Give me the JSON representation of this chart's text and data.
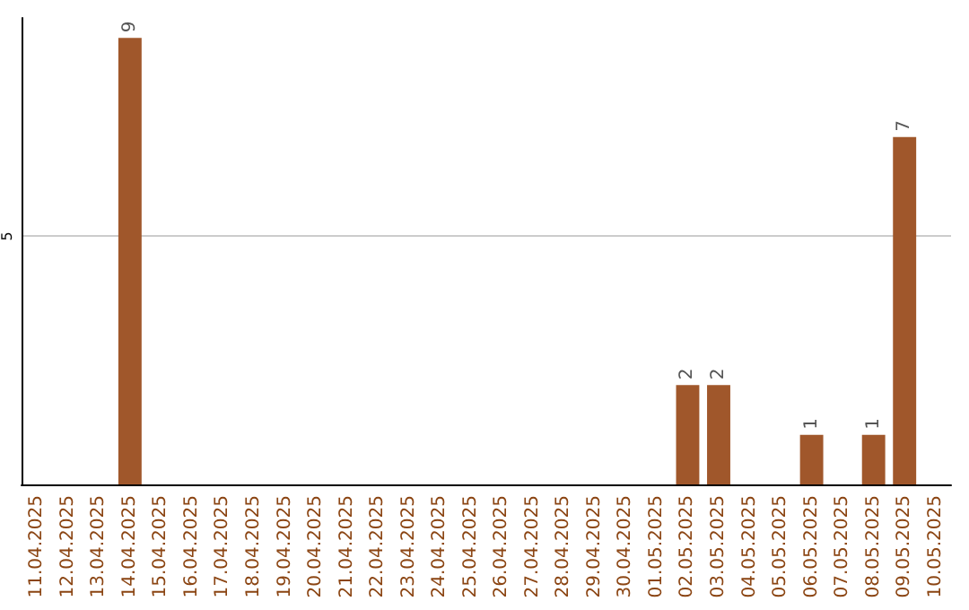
{
  "chart_data": {
    "type": "bar",
    "categories": [
      "11.04.2025",
      "12.04.2025",
      "13.04.2025",
      "14.04.2025",
      "15.04.2025",
      "16.04.2025",
      "17.04.2025",
      "18.04.2025",
      "19.04.2025",
      "20.04.2025",
      "21.04.2025",
      "22.04.2025",
      "23.04.2025",
      "24.04.2025",
      "25.04.2025",
      "26.04.2025",
      "27.04.2025",
      "28.04.2025",
      "29.04.2025",
      "30.04.2025",
      "01.05.2025",
      "02.05.2025",
      "03.05.2025",
      "04.05.2025",
      "05.05.2025",
      "06.05.2025",
      "07.05.2025",
      "08.05.2025",
      "09.05.2025",
      "10.05.2025"
    ],
    "values": [
      0,
      0,
      0,
      9,
      0,
      0,
      0,
      0,
      0,
      0,
      0,
      0,
      0,
      0,
      0,
      0,
      0,
      0,
      0,
      0,
      0,
      2,
      2,
      0,
      0,
      1,
      0,
      1,
      7,
      0
    ],
    "value_labels": [
      null,
      null,
      null,
      "9",
      null,
      null,
      null,
      null,
      null,
      null,
      null,
      null,
      null,
      null,
      null,
      null,
      null,
      null,
      null,
      null,
      null,
      "2",
      "2",
      null,
      null,
      "1",
      null,
      "1",
      "7",
      null
    ],
    "color": "#a0572b",
    "ylim": [
      0,
      9.4
    ],
    "yticks": [
      5
    ],
    "grid": "y"
  }
}
